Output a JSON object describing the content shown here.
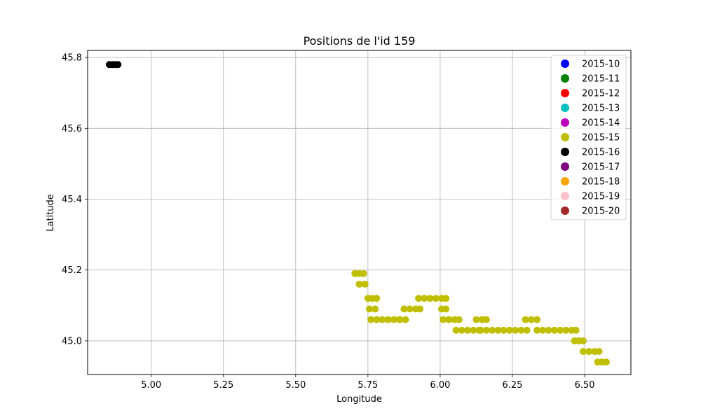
{
  "chart_data": {
    "type": "scatter",
    "title": "Positions de l'id 159",
    "xlabel": "Longitude",
    "ylabel": "Latitude",
    "xlim": [
      4.78,
      6.66
    ],
    "ylim": [
      44.905,
      45.82
    ],
    "xticks": [
      5.0,
      5.25,
      5.5,
      5.75,
      6.0,
      6.25,
      6.5
    ],
    "xtick_labels": [
      "5.00",
      "5.25",
      "5.50",
      "5.75",
      "6.00",
      "6.25",
      "6.50"
    ],
    "yticks": [
      45.0,
      45.2,
      45.4,
      45.6,
      45.8
    ],
    "ytick_labels": [
      "45.0",
      "45.2",
      "45.4",
      "45.6",
      "45.8"
    ],
    "grid": true,
    "legend_position": "top-right",
    "series": [
      {
        "name": "2015-10",
        "color": "#0000ff",
        "points": []
      },
      {
        "name": "2015-11",
        "color": "#008000",
        "points": []
      },
      {
        "name": "2015-12",
        "color": "#ff0000",
        "points": []
      },
      {
        "name": "2015-13",
        "color": "#00bfbf",
        "points": []
      },
      {
        "name": "2015-14",
        "color": "#bf00bf",
        "points": []
      },
      {
        "name": "2015-15",
        "color": "#bfbf00",
        "points": [
          [
            5.705,
            45.19
          ],
          [
            5.72,
            45.19
          ],
          [
            5.735,
            45.19
          ],
          [
            5.72,
            45.16
          ],
          [
            5.74,
            45.16
          ],
          [
            5.75,
            45.12
          ],
          [
            5.765,
            45.12
          ],
          [
            5.78,
            45.12
          ],
          [
            5.755,
            45.09
          ],
          [
            5.775,
            45.09
          ],
          [
            5.76,
            45.06
          ],
          [
            5.78,
            45.06
          ],
          [
            5.8,
            45.06
          ],
          [
            5.82,
            45.06
          ],
          [
            5.84,
            45.06
          ],
          [
            5.86,
            45.06
          ],
          [
            5.88,
            45.06
          ],
          [
            5.875,
            45.09
          ],
          [
            5.895,
            45.09
          ],
          [
            5.915,
            45.09
          ],
          [
            5.93,
            45.09
          ],
          [
            5.925,
            45.12
          ],
          [
            5.945,
            45.12
          ],
          [
            5.965,
            45.12
          ],
          [
            5.985,
            45.12
          ],
          [
            6.005,
            45.12
          ],
          [
            6.02,
            45.12
          ],
          [
            6.005,
            45.09
          ],
          [
            6.02,
            45.09
          ],
          [
            6.01,
            45.06
          ],
          [
            6.03,
            45.06
          ],
          [
            6.05,
            45.06
          ],
          [
            6.065,
            45.06
          ],
          [
            6.055,
            45.03
          ],
          [
            6.075,
            45.03
          ],
          [
            6.095,
            45.03
          ],
          [
            6.115,
            45.03
          ],
          [
            6.135,
            45.03
          ],
          [
            6.125,
            45.06
          ],
          [
            6.145,
            45.06
          ],
          [
            6.16,
            45.06
          ],
          [
            6.14,
            45.03
          ],
          [
            6.16,
            45.03
          ],
          [
            6.18,
            45.03
          ],
          [
            6.2,
            45.03
          ],
          [
            6.22,
            45.03
          ],
          [
            6.24,
            45.03
          ],
          [
            6.26,
            45.03
          ],
          [
            6.28,
            45.03
          ],
          [
            6.3,
            45.03
          ],
          [
            6.295,
            45.06
          ],
          [
            6.315,
            45.06
          ],
          [
            6.335,
            45.06
          ],
          [
            6.335,
            45.03
          ],
          [
            6.355,
            45.03
          ],
          [
            6.375,
            45.03
          ],
          [
            6.395,
            45.03
          ],
          [
            6.415,
            45.03
          ],
          [
            6.435,
            45.03
          ],
          [
            6.455,
            45.03
          ],
          [
            6.47,
            45.03
          ],
          [
            6.465,
            45.0
          ],
          [
            6.48,
            45.0
          ],
          [
            6.495,
            45.0
          ],
          [
            6.495,
            44.97
          ],
          [
            6.515,
            44.97
          ],
          [
            6.535,
            44.97
          ],
          [
            6.55,
            44.97
          ],
          [
            6.545,
            44.94
          ],
          [
            6.56,
            44.94
          ],
          [
            6.575,
            44.94
          ]
        ]
      },
      {
        "name": "2015-16",
        "color": "#000000",
        "points": [
          [
            4.855,
            45.78
          ],
          [
            4.865,
            45.78
          ],
          [
            4.875,
            45.78
          ],
          [
            4.885,
            45.78
          ]
        ]
      },
      {
        "name": "2015-17",
        "color": "#800080",
        "points": []
      },
      {
        "name": "2015-18",
        "color": "#ffa500",
        "points": []
      },
      {
        "name": "2015-19",
        "color": "#ffc0cb",
        "points": []
      },
      {
        "name": "2015-20",
        "color": "#a52a2a",
        "points": []
      }
    ]
  }
}
